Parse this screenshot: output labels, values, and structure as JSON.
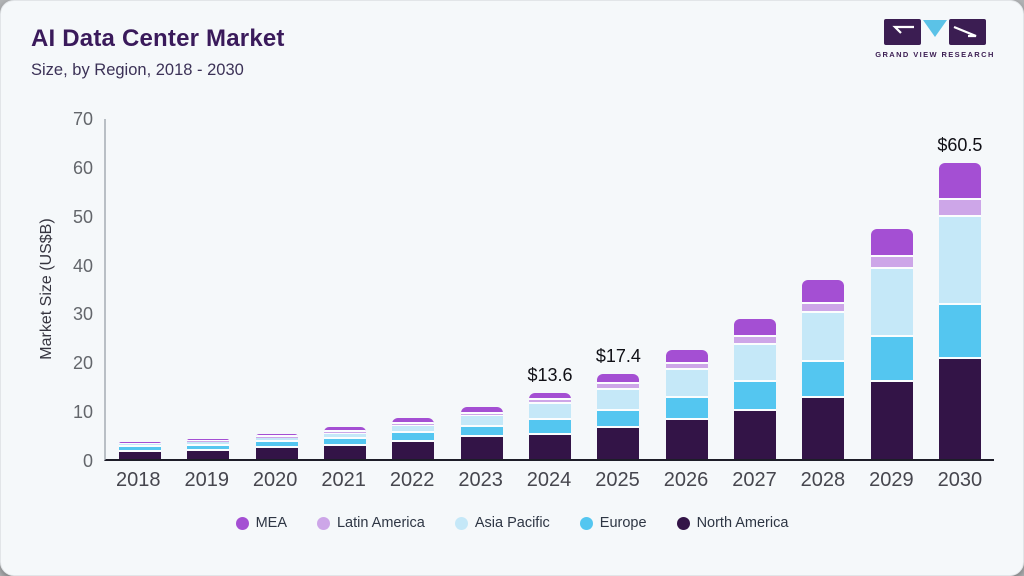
{
  "card": {
    "title": "AI Data Center Market",
    "subtitle": "Size, by Region, 2018 - 2030",
    "logo_text": "GRAND VIEW RESEARCH"
  },
  "colors": {
    "card_bg": "#f5f8fa",
    "title": "#3a1a5b",
    "logo_purple": "#3b1d52",
    "logo_blue": "#5bc2e7",
    "axis_line_x": "#1d1d28",
    "axis_line_y": "#b9bfc5"
  },
  "chart_data": {
    "type": "bar",
    "stacked": true,
    "title": "AI Data Center Market",
    "subtitle": "Size, by Region, 2018 - 2030",
    "xlabel": "",
    "ylabel": "Market Size (US$B)",
    "ylim": [
      0,
      70
    ],
    "yticks": [
      0,
      10,
      20,
      30,
      40,
      50,
      60,
      70
    ],
    "grid": false,
    "legend_position": "bottom",
    "categories": [
      "2018",
      "2019",
      "2020",
      "2021",
      "2022",
      "2023",
      "2024",
      "2025",
      "2026",
      "2027",
      "2028",
      "2029",
      "2030"
    ],
    "stack_order_note": "North America at bottom, MEA on top; series listed in legend order",
    "series": [
      {
        "name": "MEA",
        "color": "#a44fd3",
        "values": [
          0.35,
          0.45,
          0.6,
          1.0,
          1.1,
          1.3,
          1.6,
          2.1,
          2.8,
          3.6,
          4.9,
          5.8,
          7.4
        ]
      },
      {
        "name": "Latin America",
        "color": "#cda6e8",
        "values": [
          0.15,
          0.2,
          0.25,
          0.3,
          0.4,
          0.55,
          0.8,
          1.1,
          1.3,
          1.6,
          1.9,
          2.5,
          3.5
        ]
      },
      {
        "name": "Asia Pacific",
        "color": "#c5e8f8",
        "values": [
          0.6,
          0.7,
          0.9,
          1.1,
          1.4,
          2.2,
          3.2,
          4.3,
          5.8,
          7.6,
          10.0,
          13.9,
          18.1
        ]
      },
      {
        "name": "Europe",
        "color": "#54c6f0",
        "values": [
          0.9,
          1.05,
          1.3,
          1.5,
          1.85,
          2.1,
          3.1,
          3.6,
          4.4,
          5.9,
          7.4,
          9.1,
          11.1
        ]
      },
      {
        "name": "North America",
        "color": "#331447",
        "values": [
          1.5,
          1.7,
          2.15,
          2.6,
          3.55,
          4.45,
          4.9,
          6.3,
          8.0,
          9.9,
          12.5,
          15.8,
          20.4
        ]
      }
    ],
    "totals": [
      3.5,
      4.1,
      5.2,
      6.5,
      8.3,
      10.6,
      13.6,
      17.4,
      22.3,
      28.6,
      36.7,
      47.1,
      60.5
    ],
    "annotations": [
      "",
      "",
      "",
      "",
      "",
      "",
      "$13.6",
      "$17.4",
      "",
      "",
      "",
      "",
      "$60.5"
    ]
  }
}
